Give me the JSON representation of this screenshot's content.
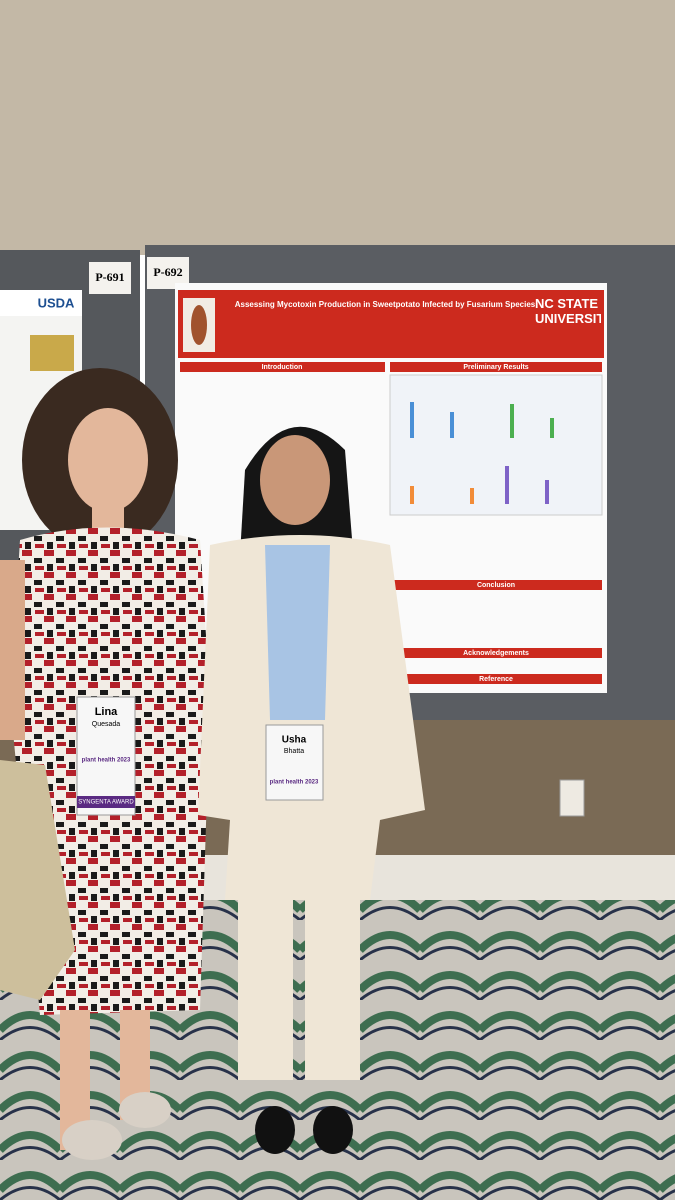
{
  "signs": [
    "P-691",
    "P-692"
  ],
  "left_poster": {
    "logo": "USDA"
  },
  "poster": {
    "title": "Assessing Mycotoxin Production in Sweetpotato Infected by Fusarium Species",
    "institution": "NC STATE UNIVERSITY",
    "sections": [
      "Introduction",
      "Preliminary Results",
      "Conclusion",
      "Acknowledgements",
      "Reference"
    ]
  },
  "badges": [
    {
      "first_name": "Lina",
      "last_name": "Quesada",
      "event": "plant health 2023",
      "award": "SYNGENTA AWARD"
    },
    {
      "first_name": "Usha",
      "last_name": "Bhatta",
      "event": "plant health 2023"
    }
  ]
}
